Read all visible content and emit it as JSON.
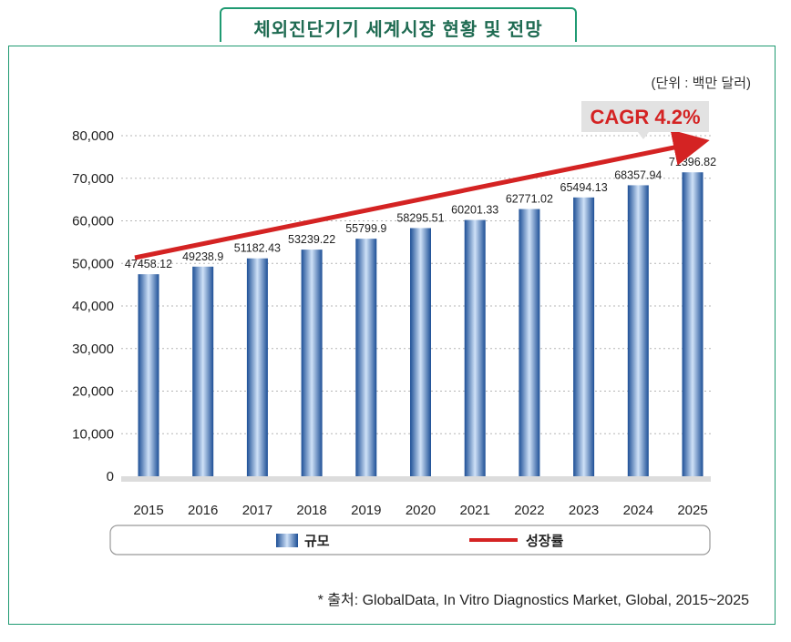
{
  "title": "체외진단기기 세계시장 현황 및 전망",
  "unit": "(단위 : 백만 달러)",
  "source": "* 출처: GlobalData, In Vitro Diagnostics Market, Global, 2015~2025",
  "cagr_label": "CAGR 4.2%",
  "colors": {
    "frame": "#1f9a72",
    "bar": "#2a5fa8",
    "trend": "#d42323",
    "cagr_box": "#e2e2e2"
  },
  "chart_data": {
    "type": "bar",
    "categories": [
      "2015",
      "2016",
      "2017",
      "2018",
      "2019",
      "2020",
      "2021",
      "2022",
      "2023",
      "2024",
      "2025"
    ],
    "series": [
      {
        "name": "규모",
        "values": [
          47458.12,
          49238.9,
          51182.43,
          53239.22,
          55799.9,
          58295.51,
          60201.33,
          62771.02,
          65494.13,
          68357.94,
          71396.82
        ]
      }
    ],
    "value_labels": [
      "47458.12",
      "49238.9",
      "51182.43",
      "53239.22",
      "55799.9",
      "58295.51",
      "60201.33",
      "62771.02",
      "65494.13",
      "68357.94",
      "71396.82"
    ],
    "trend": {
      "name": "성장률",
      "label": "CAGR 4.2%"
    },
    "ylim": [
      0,
      80000
    ],
    "yticks": [
      0,
      10000,
      20000,
      30000,
      40000,
      50000,
      60000,
      70000,
      80000
    ],
    "ytick_labels": [
      "0",
      "10,000",
      "20,000",
      "30,000",
      "40,000",
      "50,000",
      "60,000",
      "70,000",
      "80,000"
    ],
    "grid": true,
    "legend_position": "bottom",
    "xlabel": "",
    "ylabel": ""
  }
}
